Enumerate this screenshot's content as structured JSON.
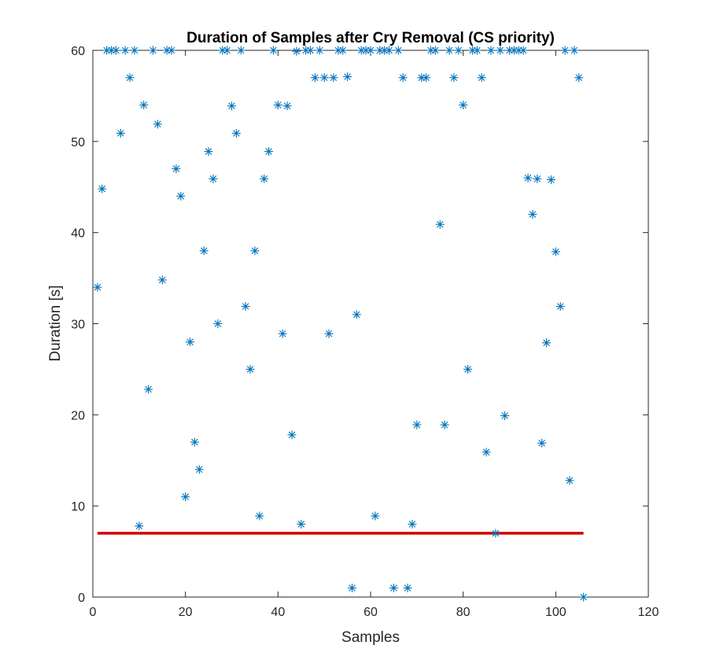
{
  "chart_data": {
    "type": "scatter",
    "title": "Duration of Samples after Cry Removal (CS priority)",
    "xlabel": "Samples",
    "ylabel": "Duration [s]",
    "xlim": [
      0,
      120
    ],
    "ylim": [
      0,
      60
    ],
    "xticks": [
      "0",
      "20",
      "40",
      "60",
      "80",
      "100",
      "120"
    ],
    "yticks": [
      "0",
      "10",
      "20",
      "30",
      "40",
      "50",
      "60"
    ],
    "grid": false,
    "legend": "none",
    "marker": "asterisk",
    "colors": {
      "points": "#0072BD",
      "threshold": "#D40000",
      "axes": "#262626"
    },
    "series": [
      {
        "x": [
          1,
          2,
          3,
          4,
          5,
          6,
          7,
          8,
          9,
          10,
          11,
          12,
          13,
          14,
          15,
          16,
          17,
          18,
          19,
          20,
          21,
          22,
          23,
          24,
          25,
          26,
          27,
          28,
          29,
          30,
          31,
          32,
          33,
          34,
          35,
          36,
          37,
          38,
          39,
          40,
          41,
          42,
          43,
          44,
          45,
          46,
          47,
          48,
          49,
          50,
          51,
          52,
          53,
          54,
          55,
          56,
          57,
          58,
          59,
          60,
          61,
          62,
          63,
          64,
          65,
          66,
          67,
          68,
          69,
          70,
          71,
          72,
          73,
          74,
          75,
          76,
          77,
          78,
          79,
          80,
          81,
          82,
          83,
          84,
          85,
          86,
          87,
          88,
          89,
          90,
          91,
          92,
          93,
          94,
          95,
          96,
          97,
          98,
          99,
          100,
          101,
          102,
          103,
          104,
          105,
          106
        ],
        "y": [
          34,
          44.8,
          60,
          60,
          60,
          50.9,
          60,
          57,
          60,
          7.8,
          54,
          22.8,
          60,
          51.9,
          34.8,
          60,
          60,
          47,
          44,
          11,
          28,
          17,
          14,
          38,
          48.9,
          45.9,
          30,
          60,
          60,
          53.9,
          50.9,
          60,
          31.9,
          25,
          38,
          8.9,
          45.9,
          48.9,
          60,
          54,
          28.9,
          53.9,
          17.8,
          59.9,
          8,
          60,
          60,
          57,
          60,
          57,
          28.9,
          57,
          60,
          60,
          57.1,
          1,
          31,
          60,
          60,
          60,
          8.9,
          60,
          60,
          60,
          1,
          60,
          57,
          1,
          8,
          18.9,
          57,
          57,
          60,
          60,
          40.9,
          18.9,
          60,
          57,
          60,
          54,
          25,
          60,
          60,
          57,
          15.9,
          60,
          7,
          60,
          19.9,
          60,
          60,
          60,
          60,
          46,
          42,
          45.9,
          16.9,
          27.9,
          45.8,
          37.9,
          31.9,
          60,
          12.8,
          60,
          57,
          0
        ]
      }
    ],
    "threshold": {
      "y": 7,
      "x_start": 1,
      "x_end": 106
    }
  }
}
